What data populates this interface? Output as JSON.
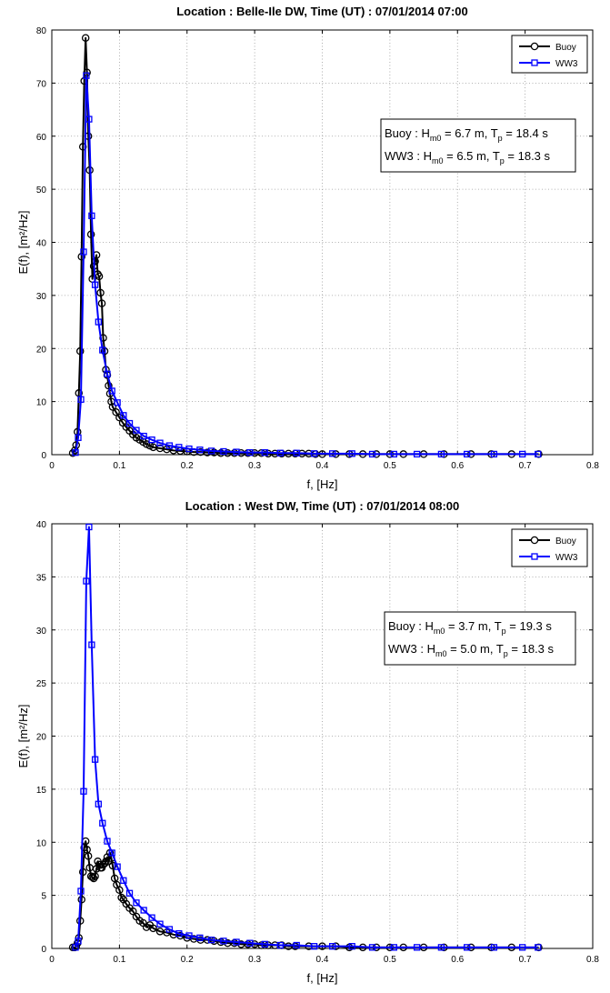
{
  "chart_data": [
    {
      "type": "line",
      "title": "Location : Belle-Ile DW, Time (UT) : 07/01/2014 07:00",
      "xlabel": "f, [Hz]",
      "ylabel": "E(f), [m²/Hz]",
      "xlim": [
        0,
        0.8
      ],
      "ylim": [
        0,
        80
      ],
      "xticks": [
        0,
        0.1,
        0.2,
        0.3,
        0.4,
        0.5,
        0.6,
        0.7,
        0.8
      ],
      "xtick_labels": [
        "0",
        "0.1",
        "0.2",
        "0.3",
        "0.4",
        "0.5",
        "0.6",
        "0.7",
        "0.8"
      ],
      "yticks": [
        0,
        10,
        20,
        30,
        40,
        50,
        60,
        70,
        80
      ],
      "ytick_labels": [
        "0",
        "10",
        "20",
        "30",
        "40",
        "50",
        "60",
        "70",
        "80"
      ],
      "grid": true,
      "legend_position": "top-right",
      "series": [
        {
          "name": "Buoy",
          "color": "#000000",
          "marker": "circle",
          "x": [
            0.031,
            0.034,
            0.036,
            0.038,
            0.04,
            0.042,
            0.044,
            0.046,
            0.048,
            0.05,
            0.052,
            0.054,
            0.056,
            0.058,
            0.06,
            0.062,
            0.064,
            0.066,
            0.068,
            0.07,
            0.072,
            0.074,
            0.076,
            0.078,
            0.08,
            0.082,
            0.084,
            0.086,
            0.088,
            0.09,
            0.095,
            0.1,
            0.105,
            0.11,
            0.115,
            0.12,
            0.125,
            0.13,
            0.135,
            0.14,
            0.145,
            0.15,
            0.16,
            0.17,
            0.18,
            0.19,
            0.2,
            0.21,
            0.22,
            0.23,
            0.24,
            0.25,
            0.26,
            0.27,
            0.28,
            0.29,
            0.3,
            0.31,
            0.32,
            0.33,
            0.34,
            0.35,
            0.36,
            0.37,
            0.38,
            0.39,
            0.4,
            0.42,
            0.44,
            0.46,
            0.48,
            0.5,
            0.52,
            0.55,
            0.58,
            0.62,
            0.65,
            0.68,
            0.72
          ],
          "y": [
            0.3,
            0.8,
            1.8,
            4.3,
            11.6,
            19.5,
            37.3,
            58.0,
            70.4,
            78.5,
            72.0,
            60.0,
            53.6,
            41.5,
            33.1,
            35.5,
            36.4,
            37.6,
            34.0,
            33.6,
            30.5,
            28.5,
            22.0,
            19.5,
            16.0,
            15.0,
            13.0,
            11.5,
            10.0,
            9.0,
            8.0,
            7.0,
            6.0,
            5.2,
            4.5,
            3.8,
            3.2,
            2.8,
            2.4,
            2.0,
            1.7,
            1.4,
            1.2,
            1.0,
            0.8,
            0.7,
            0.6,
            0.5,
            0.5,
            0.4,
            0.4,
            0.3,
            0.3,
            0.3,
            0.3,
            0.3,
            0.3,
            0.3,
            0.2,
            0.2,
            0.2,
            0.2,
            0.2,
            0.2,
            0.2,
            0.1,
            0.1,
            0.1,
            0.1,
            0.1,
            0.1,
            0.1,
            0.1,
            0.1,
            0.1,
            0.1,
            0.1,
            0.1,
            0.1
          ]
        },
        {
          "name": "WW3",
          "color": "#0000ff",
          "marker": "square",
          "x": [
            0.035,
            0.039,
            0.043,
            0.047,
            0.051,
            0.055,
            0.059,
            0.064,
            0.069,
            0.075,
            0.082,
            0.089,
            0.097,
            0.106,
            0.115,
            0.125,
            0.136,
            0.148,
            0.16,
            0.174,
            0.188,
            0.203,
            0.219,
            0.236,
            0.254,
            0.273,
            0.293,
            0.315,
            0.338,
            0.362,
            0.388,
            0.415,
            0.444,
            0.474,
            0.506,
            0.54,
            0.576,
            0.614,
            0.654,
            0.696,
            0.719
          ],
          "y": [
            0.4,
            3.2,
            10.4,
            38.2,
            71.4,
            63.2,
            45.0,
            32.0,
            25.0,
            19.7,
            15.2,
            12.0,
            9.8,
            7.4,
            5.9,
            4.6,
            3.5,
            2.8,
            2.2,
            1.7,
            1.4,
            1.1,
            0.9,
            0.7,
            0.6,
            0.5,
            0.4,
            0.4,
            0.3,
            0.3,
            0.2,
            0.2,
            0.2,
            0.1,
            0.1,
            0.1,
            0.1,
            0.1,
            0.1,
            0.1,
            0.1
          ]
        }
      ],
      "annotation": {
        "line1": {
          "a": "Buoy : H",
          "sub": "m0",
          "b": " = 6.7 m, T",
          "sub2": "p",
          "c": " = 18.4 s"
        },
        "line2": {
          "a": "WW3 : H",
          "sub": "m0",
          "b": " = 6.5 m, T",
          "sub2": "p",
          "c": " = 18.3 s"
        }
      }
    },
    {
      "type": "line",
      "title": "Location : West DW, Time (UT) : 07/01/2014 08:00",
      "xlabel": "f, [Hz]",
      "ylabel": "E(f), [m²/Hz]",
      "xlim": [
        0,
        0.8
      ],
      "ylim": [
        0,
        40
      ],
      "xticks": [
        0,
        0.1,
        0.2,
        0.3,
        0.4,
        0.5,
        0.6,
        0.7,
        0.8
      ],
      "xtick_labels": [
        "0",
        "0.1",
        "0.2",
        "0.3",
        "0.4",
        "0.5",
        "0.6",
        "0.7",
        "0.8"
      ],
      "yticks": [
        0,
        5,
        10,
        15,
        20,
        25,
        30,
        35,
        40
      ],
      "ytick_labels": [
        "0",
        "5",
        "10",
        "15",
        "20",
        "25",
        "30",
        "35",
        "40"
      ],
      "grid": true,
      "legend_position": "top-right",
      "series": [
        {
          "name": "Buoy",
          "color": "#000000",
          "marker": "circle",
          "x": [
            0.031,
            0.034,
            0.036,
            0.038,
            0.04,
            0.042,
            0.044,
            0.046,
            0.048,
            0.05,
            0.052,
            0.054,
            0.056,
            0.058,
            0.06,
            0.062,
            0.064,
            0.066,
            0.068,
            0.07,
            0.072,
            0.074,
            0.076,
            0.078,
            0.08,
            0.082,
            0.084,
            0.086,
            0.088,
            0.09,
            0.093,
            0.096,
            0.1,
            0.103,
            0.106,
            0.11,
            0.115,
            0.12,
            0.125,
            0.13,
            0.135,
            0.14,
            0.145,
            0.15,
            0.16,
            0.17,
            0.18,
            0.19,
            0.2,
            0.21,
            0.22,
            0.23,
            0.24,
            0.25,
            0.26,
            0.27,
            0.28,
            0.29,
            0.3,
            0.31,
            0.32,
            0.33,
            0.34,
            0.35,
            0.36,
            0.38,
            0.4,
            0.42,
            0.44,
            0.46,
            0.48,
            0.5,
            0.52,
            0.55,
            0.58,
            0.62,
            0.65,
            0.68,
            0.72
          ],
          "y": [
            0.1,
            0.1,
            0.2,
            0.5,
            1.0,
            2.6,
            4.6,
            7.2,
            9.5,
            10.1,
            9.3,
            8.7,
            7.6,
            6.8,
            6.7,
            6.6,
            6.8,
            7.5,
            8.2,
            7.9,
            7.6,
            7.6,
            7.9,
            8.0,
            8.2,
            8.6,
            8.2,
            9.0,
            8.5,
            7.8,
            6.6,
            6.0,
            5.5,
            4.8,
            4.6,
            4.2,
            3.8,
            3.5,
            3.0,
            2.6,
            2.4,
            2.0,
            2.2,
            1.9,
            1.6,
            1.5,
            1.3,
            1.2,
            1.0,
            0.9,
            0.8,
            0.8,
            0.7,
            0.6,
            0.5,
            0.5,
            0.4,
            0.4,
            0.4,
            0.3,
            0.3,
            0.3,
            0.3,
            0.2,
            0.2,
            0.2,
            0.2,
            0.2,
            0.1,
            0.1,
            0.1,
            0.1,
            0.1,
            0.1,
            0.1,
            0.1,
            0.1,
            0.1,
            0.1
          ]
        },
        {
          "name": "WW3",
          "color": "#0000ff",
          "marker": "square",
          "x": [
            0.035,
            0.039,
            0.043,
            0.047,
            0.051,
            0.055,
            0.059,
            0.064,
            0.069,
            0.075,
            0.082,
            0.089,
            0.097,
            0.106,
            0.115,
            0.125,
            0.136,
            0.148,
            0.16,
            0.174,
            0.188,
            0.203,
            0.219,
            0.236,
            0.254,
            0.273,
            0.293,
            0.315,
            0.338,
            0.362,
            0.388,
            0.415,
            0.444,
            0.474,
            0.506,
            0.54,
            0.576,
            0.614,
            0.654,
            0.696,
            0.719
          ],
          "y": [
            0.1,
            0.7,
            5.4,
            14.8,
            34.6,
            39.7,
            28.6,
            17.8,
            13.6,
            11.8,
            10.1,
            9.0,
            7.7,
            6.4,
            5.2,
            4.3,
            3.6,
            2.9,
            2.3,
            1.8,
            1.4,
            1.2,
            1.0,
            0.8,
            0.7,
            0.6,
            0.5,
            0.4,
            0.3,
            0.3,
            0.2,
            0.2,
            0.2,
            0.1,
            0.1,
            0.1,
            0.1,
            0.1,
            0.1,
            0.1,
            0.1
          ]
        }
      ],
      "annotation": {
        "line1": {
          "a": "Buoy : H",
          "sub": "m0",
          "b": " = 3.7 m, T",
          "sub2": "p",
          "c": " = 19.3 s"
        },
        "line2": {
          "a": "WW3 : H",
          "sub": "m0",
          "b": " = 5.0 m, T",
          "sub2": "p",
          "c": " = 18.3 s"
        }
      }
    }
  ]
}
